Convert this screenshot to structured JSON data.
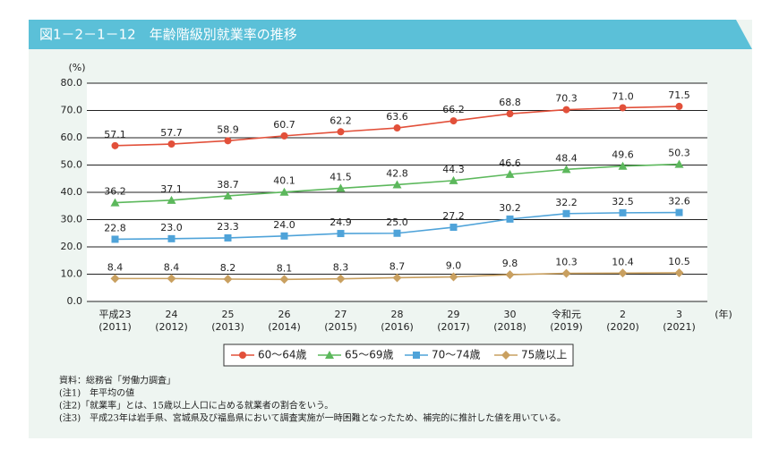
{
  "chart_data": {
    "type": "line",
    "title": "図1－2－1－12　年齢階級別就業率の推移",
    "y_unit": "(%)",
    "x_unit": "(年)",
    "categories": [
      "平成23",
      "24",
      "25",
      "26",
      "27",
      "28",
      "29",
      "30",
      "令和元",
      "2",
      "3"
    ],
    "x_sublabels": [
      "(2011)",
      "(2012)",
      "(2013)",
      "(2014)",
      "(2015)",
      "(2016)",
      "(2017)",
      "(2018)",
      "(2019)",
      "(2020)",
      "(2021)"
    ],
    "ylim": [
      0,
      80
    ],
    "yticks": [
      {
        "value": 0,
        "label": "0.0"
      },
      {
        "value": 10,
        "label": "10.0"
      },
      {
        "value": 20,
        "label": "20.0"
      },
      {
        "value": 30,
        "label": "30.0"
      },
      {
        "value": 40,
        "label": "40.0"
      },
      {
        "value": 50,
        "label": "50.0"
      },
      {
        "value": 60,
        "label": "60.0"
      },
      {
        "value": 70,
        "label": "70.0"
      },
      {
        "value": 80,
        "label": "80.0"
      }
    ],
    "grid": true,
    "series": [
      {
        "name": "60～64歳",
        "color": "#e2503a",
        "marker": "circle",
        "values": [
          57.1,
          57.7,
          58.9,
          60.7,
          62.2,
          63.6,
          66.2,
          68.8,
          70.3,
          71.0,
          71.5
        ],
        "value_labels": [
          "57.1",
          "57.7",
          "58.9",
          "60.7",
          "62.2",
          "63.6",
          "66.2",
          "68.8",
          "70.3",
          "71.0",
          "71.5"
        ]
      },
      {
        "name": "65～69歳",
        "color": "#5cb85c",
        "marker": "triangle",
        "values": [
          36.2,
          37.1,
          38.7,
          40.1,
          41.5,
          42.8,
          44.3,
          46.6,
          48.4,
          49.6,
          50.3
        ],
        "value_labels": [
          "36.2",
          "37.1",
          "38.7",
          "40.1",
          "41.5",
          "42.8",
          "44.3",
          "46.6",
          "48.4",
          "49.6",
          "50.3"
        ]
      },
      {
        "name": "70～74歳",
        "color": "#4fa3d9",
        "marker": "square",
        "values": [
          22.8,
          23.0,
          23.3,
          24.0,
          24.9,
          25.0,
          27.2,
          30.2,
          32.2,
          32.5,
          32.6
        ],
        "value_labels": [
          "22.8",
          "23.0",
          "23.3",
          "24.0",
          "24.9",
          "25.0",
          "27.2",
          "30.2",
          "32.2",
          "32.5",
          "32.6"
        ]
      },
      {
        "name": "75歳以上",
        "color": "#c9a060",
        "marker": "diamond",
        "values": [
          8.4,
          8.4,
          8.2,
          8.1,
          8.3,
          8.7,
          9.0,
          9.8,
          10.3,
          10.4,
          10.5
        ],
        "value_labels": [
          "8.4",
          "8.4",
          "8.2",
          "8.1",
          "8.3",
          "8.7",
          "9.0",
          "9.8",
          "10.3",
          "10.4",
          "10.5"
        ]
      }
    ],
    "notes": [
      "資料：総務省「労働力調査」",
      "(注1)　年平均の値",
      "(注2)「就業率」とは、15歳以上人口に占める就業者の割合をいう。",
      "(注3)　平成23年は岩手県、宮城県及び福島県において調査実施が一時困難となったため、補完的に推計した値を用いている。"
    ]
  }
}
